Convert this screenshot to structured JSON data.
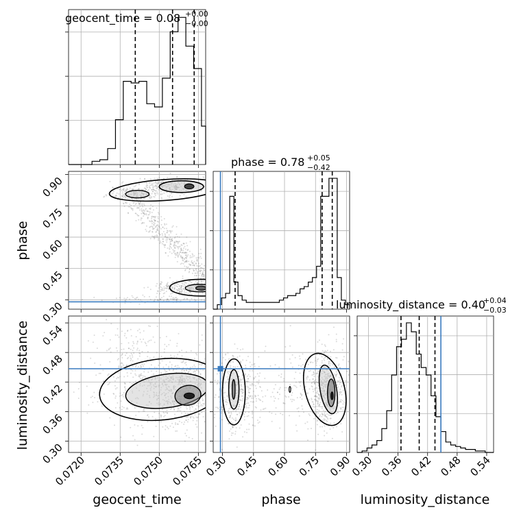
{
  "chart_data": {
    "type": "corner",
    "parameters": [
      "geocent_time",
      "phase",
      "luminosity_distance"
    ],
    "labels": {
      "geocent_time": "geocent_time",
      "phase": "phase",
      "luminosity_distance": "luminosity_distance"
    },
    "titles": [
      {
        "prefix": "geocent_time = 0.08",
        "plus": "+0.00",
        "minus": "−0.00"
      },
      {
        "prefix": "phase = 0.78",
        "plus": "+0.05",
        "minus": "−0.42"
      },
      {
        "prefix": "luminosity_distance = 0.40",
        "plus": "+0.04",
        "minus": "−0.03"
      }
    ],
    "ranges": {
      "geocent_time": [
        0.07152,
        0.07678
      ],
      "phase": [
        0.255,
        0.915
      ],
      "luminosity_distance": [
        0.277,
        0.554
      ]
    },
    "ticks": {
      "geocent_time": [
        "0.0720",
        "0.0735",
        "0.0750",
        "0.0765"
      ],
      "phase": [
        "0.30",
        "0.45",
        "0.60",
        "0.75",
        "0.90"
      ],
      "luminosity_distance": [
        "0.30",
        "0.36",
        "0.42",
        "0.48",
        "0.54"
      ]
    },
    "injection": {
      "phase": 0.29,
      "luminosity_distance": 0.447
    },
    "quantiles": {
      "geocent_time": [
        0.07408,
        0.07551,
        0.07634
      ],
      "phase": [
        0.361,
        0.782,
        0.831
      ],
      "luminosity_distance": [
        0.366,
        0.403,
        0.435
      ]
    },
    "histograms": {
      "geocent_time": {
        "bin_edges": [
          0.07152,
          0.07182,
          0.07212,
          0.07242,
          0.07272,
          0.07302,
          0.07332,
          0.07362,
          0.07392,
          0.07422,
          0.07452,
          0.07482,
          0.07512,
          0.07542,
          0.07572,
          0.07602,
          0.07632,
          0.07662,
          0.07678
        ],
        "counts": [
          0,
          0,
          0,
          0.02,
          0.03,
          0.1,
          0.28,
          0.52,
          0.51,
          0.52,
          0.38,
          0.36,
          0.54,
          0.83,
          0.92,
          0.74,
          0.6,
          0.24
        ]
      },
      "phase": {
        "bin_edges": [
          0.255,
          0.275,
          0.295,
          0.315,
          0.335,
          0.355,
          0.375,
          0.395,
          0.415,
          0.435,
          0.455,
          0.475,
          0.495,
          0.515,
          0.535,
          0.555,
          0.575,
          0.595,
          0.615,
          0.635,
          0.655,
          0.675,
          0.695,
          0.715,
          0.735,
          0.755,
          0.775,
          0.795,
          0.815,
          0.835,
          0.855,
          0.875,
          0.895,
          0.915
        ],
        "counts": [
          0,
          0.02,
          0.05,
          0.07,
          0.5,
          0.12,
          0.06,
          0.04,
          0.03,
          0.03,
          0.03,
          0.03,
          0.03,
          0.03,
          0.03,
          0.03,
          0.04,
          0.05,
          0.06,
          0.06,
          0.07,
          0.09,
          0.1,
          0.12,
          0.14,
          0.19,
          0.5,
          0.5,
          0.58,
          0.58,
          0.14,
          0.04,
          0.02
        ]
      },
      "luminosity_distance": {
        "bin_edges": [
          0.277,
          0.287,
          0.297,
          0.307,
          0.317,
          0.327,
          0.337,
          0.347,
          0.357,
          0.367,
          0.377,
          0.387,
          0.397,
          0.407,
          0.417,
          0.427,
          0.437,
          0.447,
          0.457,
          0.467,
          0.477,
          0.487,
          0.497,
          0.507,
          0.517,
          0.527,
          0.537,
          0.547,
          0.554
        ],
        "counts": [
          0,
          0.01,
          0.03,
          0.05,
          0.08,
          0.16,
          0.28,
          0.52,
          0.71,
          0.76,
          0.87,
          0.81,
          0.66,
          0.57,
          0.52,
          0.38,
          0.24,
          0.14,
          0.07,
          0.05,
          0.04,
          0.03,
          0.02,
          0.02,
          0.01,
          0.01,
          0,
          0
        ]
      }
    },
    "grid": true,
    "contour_color": "#000000",
    "injection_color": "#3a7bbf"
  }
}
